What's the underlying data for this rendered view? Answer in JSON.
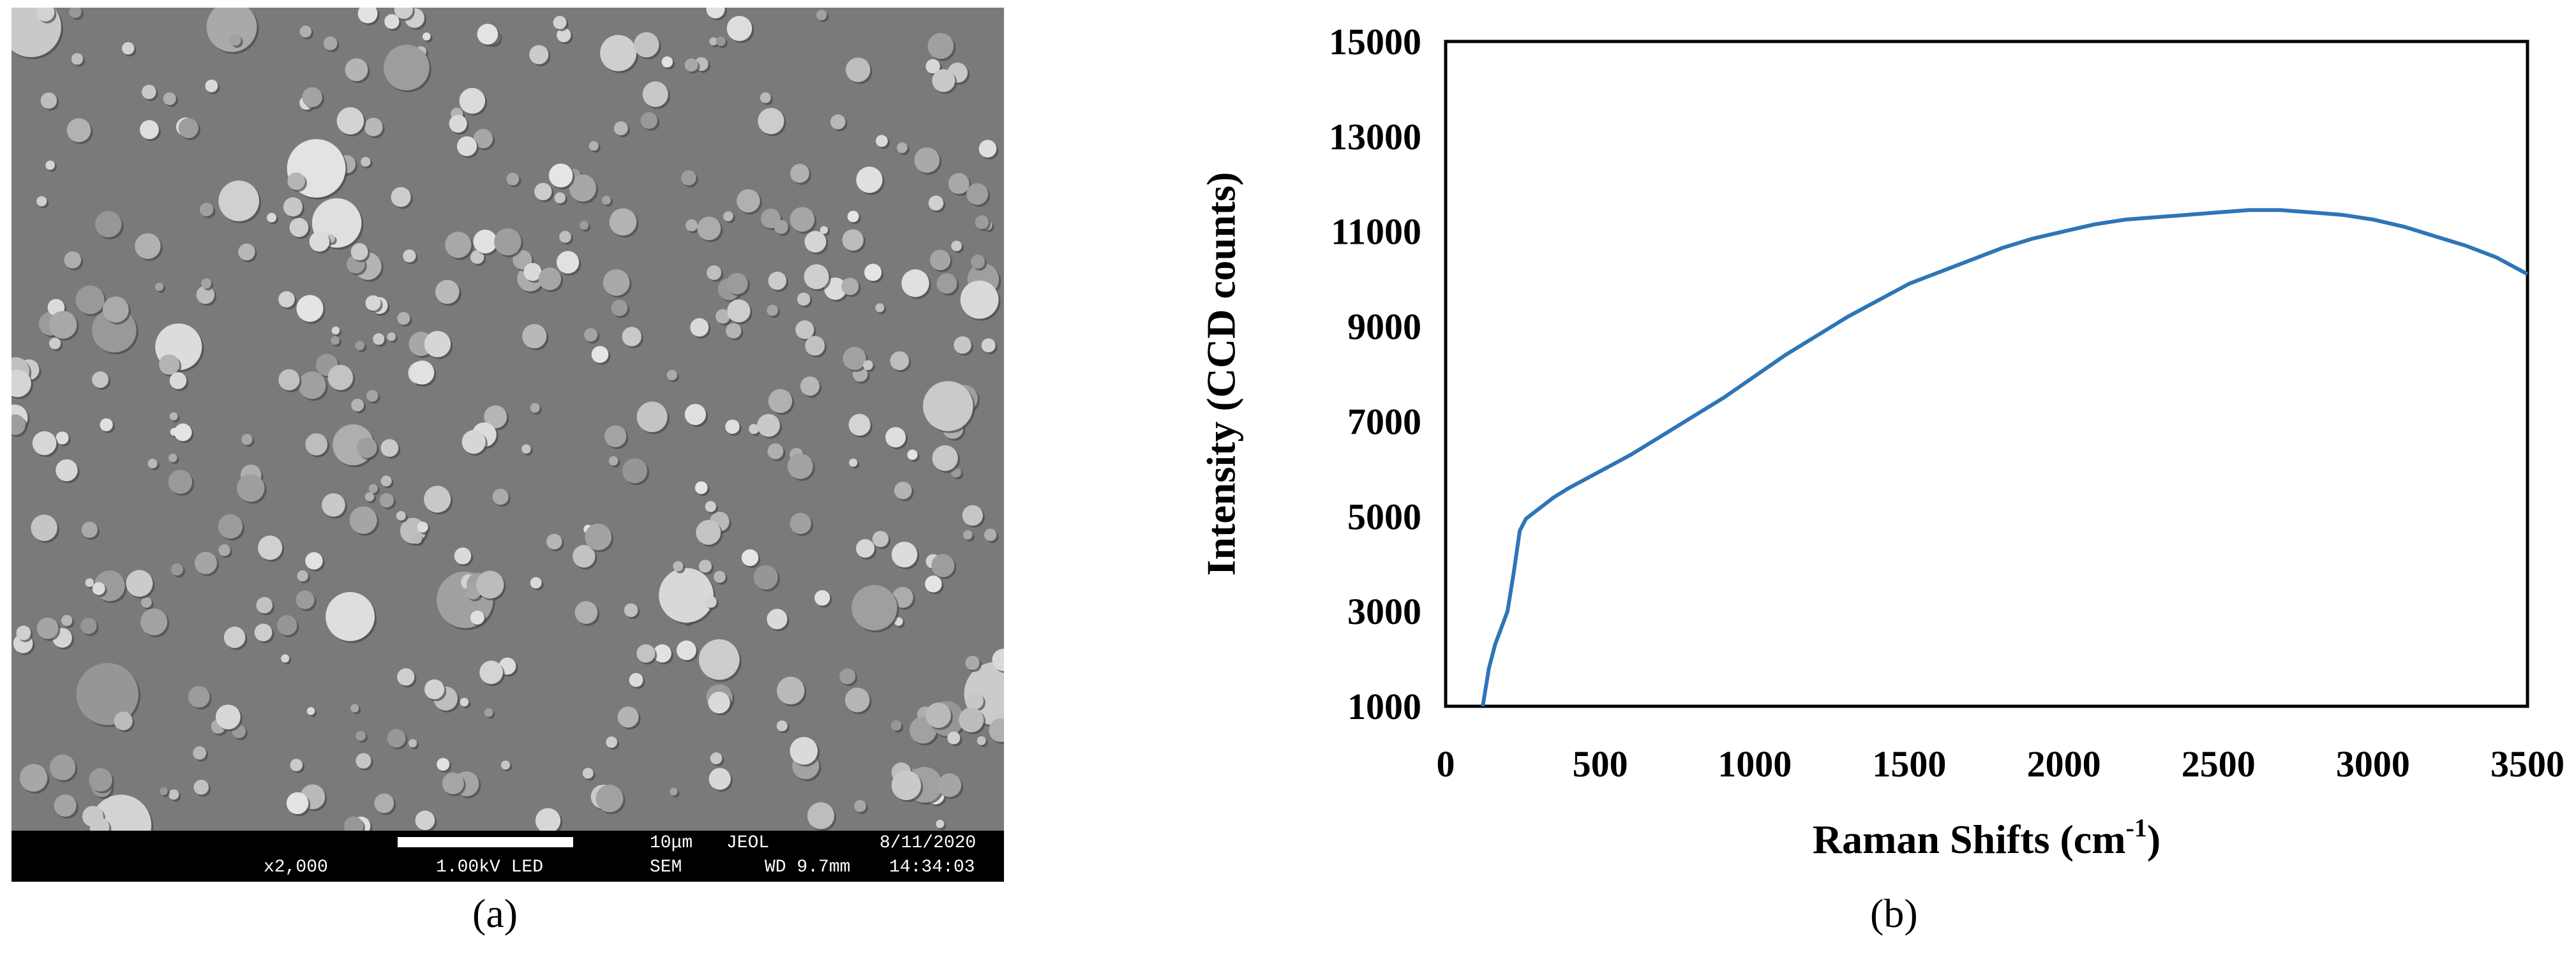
{
  "panel_a": {
    "caption": "(a)",
    "sem_info": {
      "scale_label": "10μm",
      "brand": "JEOL",
      "date": "8/11/2020",
      "magnification": "x2,000",
      "voltage": "1.00kV LED",
      "mode": "SEM",
      "wd": "WD 9.7mm",
      "time": "14:34:03"
    }
  },
  "panel_b": {
    "caption": "(b)",
    "colors": {
      "line": "#2E75B6",
      "axis": "#000000"
    }
  },
  "chart_data": {
    "type": "line",
    "title": "",
    "xlabel": "Raman Shifts (cm",
    "xlabel_sup": "-1",
    "xlabel_suffix": ")",
    "ylabel": "Intensity (CCD counts)",
    "xlim": [
      0,
      3500
    ],
    "ylim": [
      1000,
      15000
    ],
    "xticks": [
      0,
      500,
      1000,
      1500,
      2000,
      2500,
      3000,
      3500
    ],
    "yticks": [
      1000,
      3000,
      5000,
      7000,
      9000,
      11000,
      13000,
      15000
    ],
    "grid": false,
    "legend": "none",
    "series": [
      {
        "x": [
          120,
          140,
          160,
          180,
          200,
          220,
          240,
          260,
          300,
          350,
          400,
          500,
          600,
          700,
          800,
          900,
          1000,
          1100,
          1200,
          1300,
          1400,
          1500,
          1600,
          1700,
          1800,
          1900,
          2000,
          2100,
          2200,
          2300,
          2400,
          2500,
          2600,
          2700,
          2800,
          2900,
          3000,
          3100,
          3200,
          3300,
          3400,
          3500
        ],
        "y": [
          1000,
          1800,
          2300,
          2650,
          3000,
          3800,
          4700,
          4950,
          5150,
          5400,
          5600,
          5950,
          6300,
          6700,
          7100,
          7500,
          7950,
          8400,
          8800,
          9200,
          9550,
          9900,
          10150,
          10400,
          10650,
          10850,
          11000,
          11150,
          11250,
          11300,
          11350,
          11400,
          11450,
          11450,
          11400,
          11350,
          11250,
          11100,
          10900,
          10700,
          10450,
          10100
        ]
      }
    ]
  }
}
